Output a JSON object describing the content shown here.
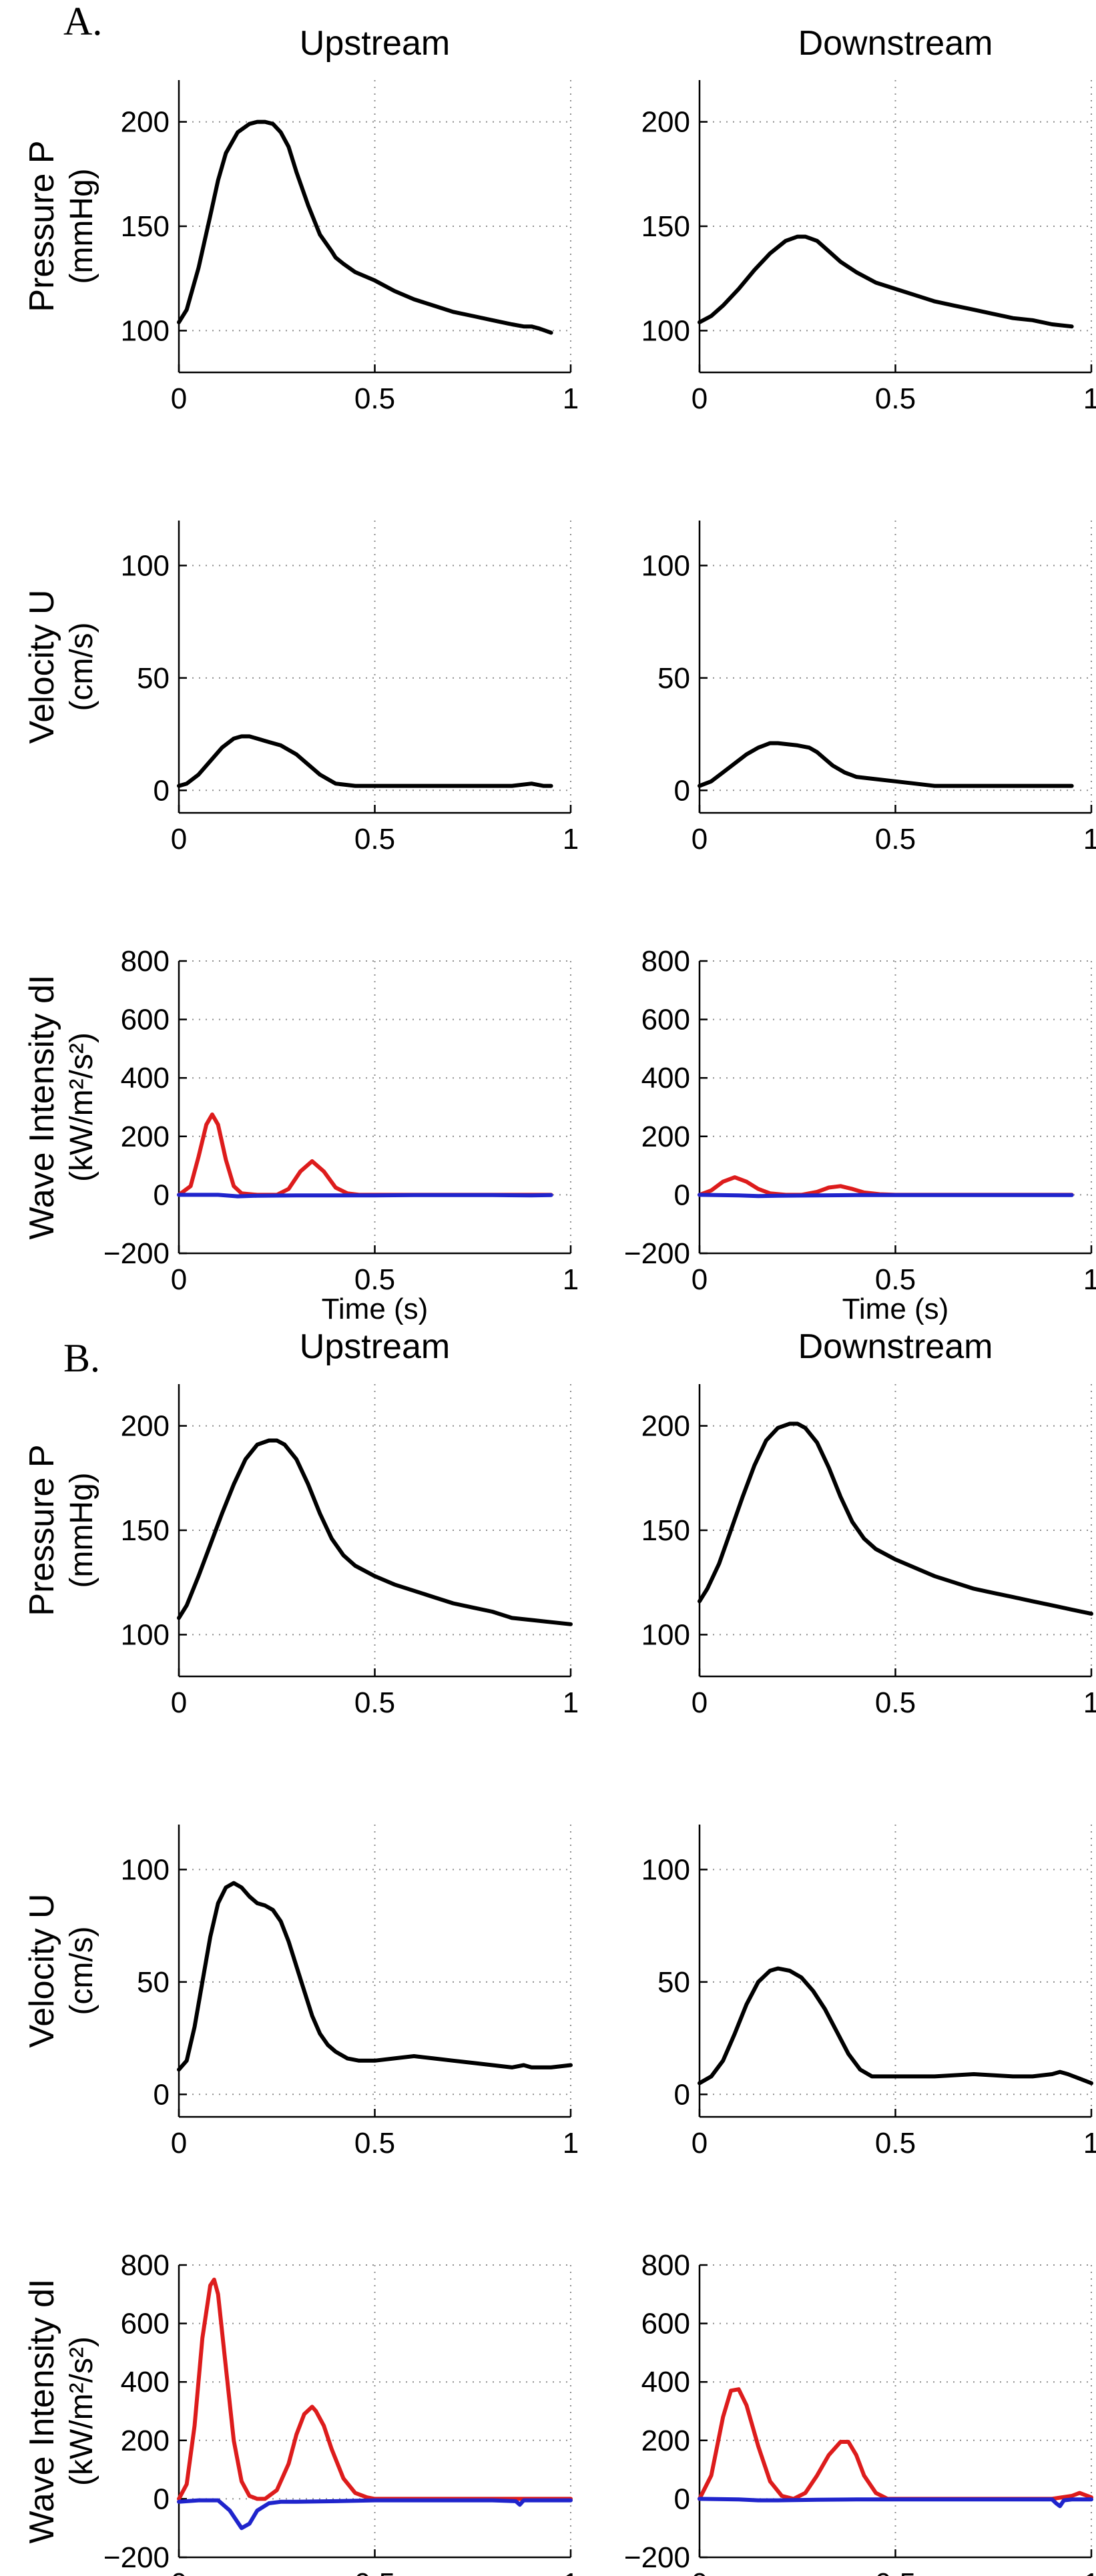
{
  "sections": [
    {
      "label": "A.",
      "columns": [
        "Upstream",
        "Downstream"
      ]
    },
    {
      "label": "B.",
      "columns": [
        "Upstream",
        "Downstream"
      ]
    }
  ],
  "rows": [
    {
      "ylabel_lines": [
        "Pressure P",
        "(mmHg)"
      ],
      "yticks": [
        "100",
        "150",
        "200"
      ],
      "xlabel": ""
    },
    {
      "ylabel_lines": [
        "Velocity U",
        "(cm/s)"
      ],
      "yticks": [
        "0",
        "50",
        "100"
      ],
      "xlabel": ""
    },
    {
      "ylabel_lines": [
        "Wave Intensity dI",
        "(kW/m²/s²)"
      ],
      "yticks": [
        "−200",
        "0",
        "200",
        "400",
        "600",
        "800"
      ],
      "xlabel": "Time (s)"
    }
  ],
  "xticks": [
    "0",
    "0.5",
    "1"
  ],
  "colors": {
    "pressure_velocity": "#000000",
    "forward_wave": "#dd1c1c",
    "backward_wave": "#1f24cc",
    "grid": "#8c8c8c"
  },
  "chart_data": [
    {
      "panel": "A-upstream-pressure",
      "type": "line",
      "xlim": [
        0,
        1
      ],
      "ylim": [
        80,
        220
      ],
      "grid": true,
      "series": [
        {
          "x": [
            0,
            0.02,
            0.05,
            0.08,
            0.1,
            0.12,
            0.15,
            0.18,
            0.2,
            0.22,
            0.24,
            0.26,
            0.28,
            0.3,
            0.33,
            0.36,
            0.39,
            0.4,
            0.42,
            0.45,
            0.5,
            0.55,
            0.6,
            0.65,
            0.7,
            0.75,
            0.8,
            0.85,
            0.88,
            0.9,
            0.92,
            0.95
          ],
          "values": [
            104,
            110,
            130,
            155,
            172,
            185,
            195,
            199,
            200,
            200,
            199,
            195,
            188,
            176,
            160,
            146,
            138,
            135,
            132,
            128,
            124,
            119,
            115,
            112,
            109,
            107,
            105,
            103,
            102,
            102,
            101,
            99
          ]
        }
      ]
    },
    {
      "panel": "A-downstream-pressure",
      "type": "line",
      "xlim": [
        0,
        1
      ],
      "ylim": [
        80,
        220
      ],
      "grid": true,
      "series": [
        {
          "x": [
            0,
            0.03,
            0.06,
            0.1,
            0.14,
            0.18,
            0.22,
            0.25,
            0.27,
            0.3,
            0.33,
            0.36,
            0.4,
            0.45,
            0.5,
            0.55,
            0.6,
            0.65,
            0.7,
            0.75,
            0.8,
            0.85,
            0.9,
            0.95
          ],
          "values": [
            104,
            107,
            112,
            120,
            129,
            137,
            143,
            145,
            145,
            143,
            138,
            133,
            128,
            123,
            120,
            117,
            114,
            112,
            110,
            108,
            106,
            105,
            103,
            102
          ]
        }
      ]
    },
    {
      "panel": "A-upstream-velocity",
      "type": "line",
      "xlim": [
        0,
        1
      ],
      "ylim": [
        -10,
        120
      ],
      "grid": true,
      "series": [
        {
          "x": [
            0,
            0.02,
            0.05,
            0.08,
            0.11,
            0.14,
            0.16,
            0.18,
            0.2,
            0.22,
            0.24,
            0.26,
            0.28,
            0.3,
            0.32,
            0.34,
            0.36,
            0.38,
            0.4,
            0.45,
            0.5,
            0.6,
            0.7,
            0.8,
            0.85,
            0.9,
            0.93,
            0.95
          ],
          "values": [
            2,
            3,
            7,
            13,
            19,
            23,
            24,
            24,
            23,
            22,
            21,
            20,
            18,
            16,
            13,
            10,
            7,
            5,
            3,
            2,
            2,
            2,
            2,
            2,
            2,
            3,
            2,
            2
          ]
        }
      ]
    },
    {
      "panel": "A-downstream-velocity",
      "type": "line",
      "xlim": [
        0,
        1
      ],
      "ylim": [
        -10,
        120
      ],
      "grid": true,
      "series": [
        {
          "x": [
            0,
            0.03,
            0.06,
            0.09,
            0.12,
            0.15,
            0.18,
            0.2,
            0.25,
            0.28,
            0.3,
            0.32,
            0.34,
            0.37,
            0.4,
            0.45,
            0.5,
            0.55,
            0.6,
            0.7,
            0.8,
            0.9,
            0.95
          ],
          "values": [
            2,
            4,
            8,
            12,
            16,
            19,
            21,
            21,
            20,
            19,
            17,
            14,
            11,
            8,
            6,
            5,
            4,
            3,
            2,
            2,
            2,
            2,
            2
          ]
        }
      ]
    },
    {
      "panel": "A-upstream-intensity",
      "type": "line",
      "xlim": [
        0,
        1
      ],
      "ylim": [
        -200,
        800
      ],
      "grid": true,
      "series": [
        {
          "name": "",
          "color": "forward_wave",
          "x": [
            0,
            0.03,
            0.05,
            0.07,
            0.085,
            0.1,
            0.12,
            0.14,
            0.16,
            0.2,
            0.25,
            0.28,
            0.31,
            0.34,
            0.37,
            0.4,
            0.43,
            0.46,
            0.5,
            0.6,
            0.7,
            0.8,
            0.9,
            0.95
          ],
          "values": [
            0,
            30,
            130,
            240,
            275,
            240,
            120,
            30,
            5,
            0,
            0,
            20,
            80,
            115,
            80,
            25,
            5,
            0,
            0,
            0,
            0,
            0,
            0,
            0
          ]
        },
        {
          "name": "",
          "color": "backward_wave",
          "x": [
            0,
            0.1,
            0.15,
            0.2,
            0.3,
            0.4,
            0.5,
            0.6,
            0.7,
            0.8,
            0.9,
            0.95
          ],
          "values": [
            0,
            0,
            -5,
            -3,
            -2,
            -2,
            -2,
            -1,
            -1,
            -1,
            -2,
            -1
          ]
        }
      ]
    },
    {
      "panel": "A-downstream-intensity",
      "type": "line",
      "xlim": [
        0,
        1
      ],
      "ylim": [
        -200,
        800
      ],
      "grid": true,
      "series": [
        {
          "name": "",
          "color": "forward_wave",
          "x": [
            0,
            0.03,
            0.06,
            0.09,
            0.12,
            0.15,
            0.18,
            0.22,
            0.26,
            0.3,
            0.33,
            0.36,
            0.39,
            0.42,
            0.46,
            0.5,
            0.6,
            0.7,
            0.8,
            0.9,
            0.95
          ],
          "values": [
            0,
            15,
            45,
            60,
            45,
            20,
            5,
            0,
            0,
            10,
            25,
            30,
            20,
            8,
            2,
            0,
            0,
            0,
            0,
            0,
            0
          ]
        },
        {
          "name": "",
          "color": "backward_wave",
          "x": [
            0,
            0.1,
            0.15,
            0.2,
            0.3,
            0.4,
            0.5,
            0.6,
            0.7,
            0.8,
            0.9,
            0.95
          ],
          "values": [
            0,
            -2,
            -4,
            -3,
            -2,
            -1,
            -1,
            -1,
            -1,
            -1,
            -1,
            -1
          ]
        }
      ]
    },
    {
      "panel": "B-upstream-pressure",
      "type": "line",
      "xlim": [
        0,
        1
      ],
      "ylim": [
        80,
        220
      ],
      "grid": true,
      "series": [
        {
          "x": [
            0,
            0.02,
            0.05,
            0.08,
            0.11,
            0.14,
            0.17,
            0.2,
            0.23,
            0.25,
            0.27,
            0.3,
            0.33,
            0.36,
            0.39,
            0.42,
            0.45,
            0.5,
            0.55,
            0.6,
            0.65,
            0.7,
            0.75,
            0.8,
            0.85,
            0.9,
            0.95,
            1.0
          ],
          "values": [
            108,
            114,
            128,
            143,
            158,
            172,
            184,
            191,
            193,
            193,
            191,
            184,
            172,
            158,
            146,
            138,
            133,
            128,
            124,
            121,
            118,
            115,
            113,
            111,
            108,
            107,
            106,
            105
          ]
        }
      ]
    },
    {
      "panel": "B-downstream-pressure",
      "type": "line",
      "xlim": [
        0,
        1
      ],
      "ylim": [
        80,
        220
      ],
      "grid": true,
      "series": [
        {
          "x": [
            0,
            0.02,
            0.05,
            0.08,
            0.11,
            0.14,
            0.17,
            0.2,
            0.23,
            0.25,
            0.27,
            0.3,
            0.33,
            0.36,
            0.39,
            0.42,
            0.45,
            0.5,
            0.55,
            0.6,
            0.65,
            0.7,
            0.75,
            0.8,
            0.85,
            0.9,
            0.95,
            1.0
          ],
          "values": [
            116,
            122,
            134,
            150,
            166,
            181,
            193,
            199,
            201,
            201,
            199,
            192,
            180,
            166,
            154,
            146,
            141,
            136,
            132,
            128,
            125,
            122,
            120,
            118,
            116,
            114,
            112,
            110
          ]
        }
      ]
    },
    {
      "panel": "B-upstream-velocity",
      "type": "line",
      "xlim": [
        0,
        1
      ],
      "ylim": [
        -10,
        120
      ],
      "grid": true,
      "series": [
        {
          "x": [
            0,
            0.02,
            0.04,
            0.06,
            0.08,
            0.1,
            0.12,
            0.14,
            0.16,
            0.18,
            0.2,
            0.22,
            0.24,
            0.26,
            0.28,
            0.3,
            0.32,
            0.34,
            0.36,
            0.38,
            0.4,
            0.43,
            0.46,
            0.5,
            0.55,
            0.6,
            0.65,
            0.7,
            0.75,
            0.8,
            0.85,
            0.88,
            0.9,
            0.95,
            1.0
          ],
          "values": [
            11,
            15,
            30,
            50,
            70,
            85,
            92,
            94,
            92,
            88,
            85,
            84,
            82,
            77,
            68,
            57,
            46,
            35,
            27,
            22,
            19,
            16,
            15,
            15,
            16,
            17,
            16,
            15,
            14,
            13,
            12,
            13,
            12,
            12,
            13
          ]
        }
      ]
    },
    {
      "panel": "B-downstream-velocity",
      "type": "line",
      "xlim": [
        0,
        1
      ],
      "ylim": [
        -10,
        120
      ],
      "grid": true,
      "series": [
        {
          "x": [
            0,
            0.03,
            0.06,
            0.09,
            0.12,
            0.15,
            0.18,
            0.2,
            0.23,
            0.26,
            0.29,
            0.32,
            0.35,
            0.38,
            0.41,
            0.44,
            0.47,
            0.5,
            0.6,
            0.7,
            0.8,
            0.85,
            0.9,
            0.92,
            0.94,
            0.97,
            1.0
          ],
          "values": [
            5,
            8,
            15,
            27,
            40,
            50,
            55,
            56,
            55,
            52,
            46,
            38,
            28,
            18,
            11,
            8,
            8,
            8,
            8,
            9,
            8,
            8,
            9,
            10,
            9,
            7,
            5
          ]
        }
      ]
    },
    {
      "panel": "B-upstream-intensity",
      "type": "line",
      "xlim": [
        0,
        1
      ],
      "ylim": [
        -200,
        800
      ],
      "grid": true,
      "series": [
        {
          "name": "",
          "color": "forward_wave",
          "x": [
            0,
            0.02,
            0.04,
            0.06,
            0.08,
            0.09,
            0.1,
            0.12,
            0.14,
            0.16,
            0.18,
            0.2,
            0.22,
            0.25,
            0.28,
            0.3,
            0.32,
            0.34,
            0.35,
            0.37,
            0.39,
            0.42,
            0.45,
            0.48,
            0.5,
            0.6,
            0.7,
            0.8,
            0.9,
            1.0
          ],
          "values": [
            0,
            50,
            250,
            550,
            730,
            750,
            700,
            450,
            200,
            60,
            10,
            0,
            0,
            30,
            120,
            220,
            290,
            315,
            300,
            250,
            170,
            70,
            20,
            5,
            0,
            0,
            0,
            0,
            0,
            0
          ]
        },
        {
          "name": "",
          "color": "backward_wave",
          "x": [
            0,
            0.05,
            0.1,
            0.13,
            0.16,
            0.18,
            0.2,
            0.23,
            0.26,
            0.3,
            0.4,
            0.5,
            0.6,
            0.7,
            0.8,
            0.86,
            0.87,
            0.88,
            0.9,
            0.95,
            1.0
          ],
          "values": [
            -10,
            -5,
            -5,
            -40,
            -100,
            -85,
            -40,
            -15,
            -10,
            -10,
            -8,
            -5,
            -5,
            -5,
            -5,
            -8,
            -20,
            -5,
            -5,
            -5,
            -5
          ]
        }
      ]
    },
    {
      "panel": "B-downstream-intensity",
      "type": "line",
      "xlim": [
        0,
        1
      ],
      "ylim": [
        -200,
        800
      ],
      "grid": true,
      "series": [
        {
          "name": "",
          "color": "forward_wave",
          "x": [
            0,
            0.03,
            0.06,
            0.08,
            0.1,
            0.12,
            0.15,
            0.18,
            0.21,
            0.24,
            0.27,
            0.3,
            0.33,
            0.36,
            0.38,
            0.4,
            0.42,
            0.45,
            0.48,
            0.5,
            0.6,
            0.7,
            0.8,
            0.9,
            0.95,
            0.97,
            1.0
          ],
          "values": [
            0,
            80,
            280,
            370,
            375,
            320,
            180,
            60,
            10,
            0,
            20,
            80,
            150,
            195,
            195,
            150,
            80,
            20,
            0,
            0,
            0,
            0,
            0,
            0,
            10,
            20,
            5
          ]
        },
        {
          "name": "",
          "color": "backward_wave",
          "x": [
            0,
            0.1,
            0.15,
            0.2,
            0.3,
            0.4,
            0.5,
            0.6,
            0.7,
            0.8,
            0.9,
            0.91,
            0.92,
            0.93,
            0.95,
            1.0
          ],
          "values": [
            0,
            -2,
            -5,
            -5,
            -3,
            -2,
            -2,
            -2,
            -2,
            -2,
            -2,
            -15,
            -25,
            -5,
            -2,
            -2
          ]
        }
      ]
    }
  ]
}
